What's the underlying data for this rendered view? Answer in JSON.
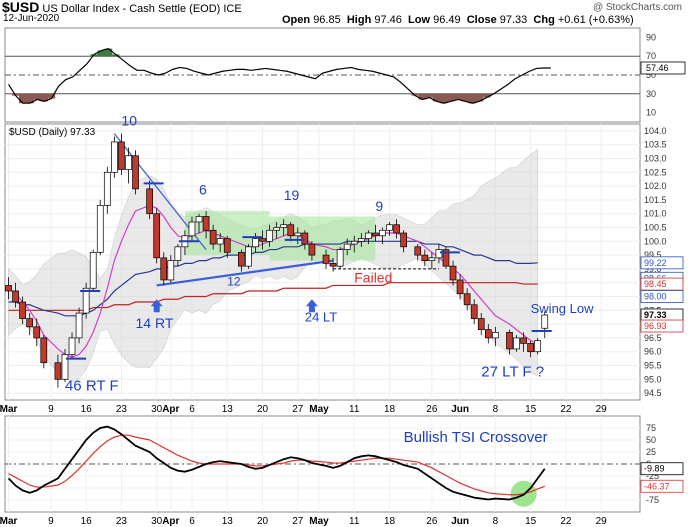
{
  "header": {
    "symbol": "$USD",
    "name": "US Dollar Index - Cash Settle (EOD)",
    "exchange": "ICE",
    "date": "12-Jun-2020",
    "watermark": "@ StockCharts.com",
    "open_label": "Open",
    "open": "96.85",
    "high_label": "High",
    "high": "97.46",
    "low_label": "Low",
    "low": "96.49",
    "close_label": "Close",
    "close": "97.33",
    "chg_label": "Chg",
    "chg": "+0.61 (+0.63%)"
  },
  "colors": {
    "up_candle": "#ffffff",
    "down_candle": "#c0392b",
    "candle_outline": "#000000",
    "trendline": "#3a5fd9",
    "annotation": "#1f3fbf",
    "failed": "#e03030",
    "ma_fast": "#d040c8",
    "ma_slow": "#2a3a8c",
    "ma_long": "#c02020",
    "band_fill": "#d8d8d8",
    "box_fill": "#a8e6a0",
    "rsi_line": "#000000",
    "rsi_over": "#3c7a40",
    "rsi_under": "#8a5a52",
    "tsi_line": "#000000",
    "tsi_signal": "#e03030",
    "highlight_circle": "#7ddc6a",
    "tag_blue": "#2a52be",
    "tag_red": "#d03030"
  },
  "chart_data": [
    {
      "type": "line",
      "panel": "rsi",
      "yticks": [
        "90",
        "70",
        "50",
        "30",
        "10"
      ],
      "ylim": [
        0,
        100
      ],
      "levels": [
        70,
        50,
        30
      ],
      "current_label": "57.46",
      "x": [
        0,
        1,
        2,
        3,
        4,
        5,
        6,
        7,
        8,
        9,
        10,
        11,
        12,
        13,
        14,
        15,
        16,
        17,
        18,
        19,
        20,
        21,
        22,
        23,
        24,
        25,
        26,
        27,
        28,
        29,
        30,
        31,
        32,
        33,
        34,
        35,
        36,
        37,
        38,
        39,
        40,
        41,
        42,
        43,
        44,
        45,
        46,
        47,
        48,
        49,
        50,
        51,
        52,
        53,
        54,
        55,
        56,
        57,
        58,
        59,
        60,
        61,
        62,
        63,
        64,
        65,
        66,
        67,
        68,
        69,
        70,
        71,
        72,
        73,
        74,
        75,
        76
      ],
      "series": [
        {
          "values": [
            40,
            28,
            20,
            20,
            24,
            22,
            25,
            38,
            45,
            48,
            55,
            62,
            72,
            76,
            78,
            72,
            66,
            60,
            55,
            55,
            52,
            50,
            52,
            56,
            58,
            57,
            54,
            52,
            50,
            52,
            54,
            55,
            56,
            56,
            55,
            56,
            57,
            56,
            55,
            54,
            52,
            50,
            48,
            46,
            52,
            54,
            56,
            57,
            58,
            56,
            55,
            54,
            52,
            50,
            48,
            42,
            35,
            28,
            24,
            26,
            22,
            20,
            22,
            24,
            22,
            20,
            22,
            26,
            30,
            35,
            40,
            46,
            50,
            54,
            57,
            57.46,
            57.46
          ]
        }
      ]
    },
    {
      "type": "candlestick",
      "panel": "price",
      "title": "$USD (Daily) 97.33",
      "ylim": [
        94.25,
        104.25
      ],
      "yticks": [
        "104.0",
        "103.5",
        "103.0",
        "102.5",
        "102.0",
        "101.5",
        "101.0",
        "100.5",
        "100.0",
        "99.5",
        "99.0",
        "98.5",
        "98.0",
        "97.5",
        "97.0",
        "96.5",
        "96.0",
        "95.5",
        "95.0",
        "94.5"
      ],
      "xticks": [
        "Mar",
        "9",
        "16",
        "23",
        "30",
        "Apr",
        "6",
        "13",
        "20",
        "27",
        "May",
        "11",
        "18",
        "26",
        "Jun",
        "8",
        "15",
        "22",
        "29"
      ],
      "price_tags": [
        {
          "label": "99.22",
          "value": 99.22,
          "color": "blue"
        },
        {
          "label": "98.66",
          "value": 98.66,
          "color": "blue"
        },
        {
          "label": "98.45",
          "value": 98.45,
          "color": "red"
        },
        {
          "label": "98.00",
          "value": 98.0,
          "color": "blue"
        },
        {
          "label": "97.33",
          "value": 97.33,
          "color": "black"
        },
        {
          "label": "96.93",
          "value": 96.93,
          "color": "red"
        }
      ],
      "candles": [
        {
          "o": 98.4,
          "h": 98.7,
          "l": 97.9,
          "c": 98.2
        },
        {
          "o": 98.2,
          "h": 98.5,
          "l": 97.6,
          "c": 97.8
        },
        {
          "o": 97.8,
          "h": 98.0,
          "l": 97.0,
          "c": 97.2
        },
        {
          "o": 97.2,
          "h": 97.4,
          "l": 96.6,
          "c": 96.9
        },
        {
          "o": 96.9,
          "h": 97.2,
          "l": 96.2,
          "c": 96.5
        },
        {
          "o": 96.5,
          "h": 96.6,
          "l": 95.4,
          "c": 95.6
        },
        {
          "o": 95.6,
          "h": 95.9,
          "l": 94.7,
          "c": 95.0
        },
        {
          "o": 95.0,
          "h": 96.1,
          "l": 94.9,
          "c": 95.9
        },
        {
          "o": 95.9,
          "h": 96.7,
          "l": 95.8,
          "c": 96.5
        },
        {
          "o": 96.5,
          "h": 97.6,
          "l": 96.3,
          "c": 97.4
        },
        {
          "o": 97.4,
          "h": 98.5,
          "l": 97.2,
          "c": 98.3
        },
        {
          "o": 98.3,
          "h": 99.7,
          "l": 98.2,
          "c": 99.6
        },
        {
          "o": 99.6,
          "h": 101.5,
          "l": 99.5,
          "c": 101.3
        },
        {
          "o": 101.3,
          "h": 102.7,
          "l": 101.0,
          "c": 102.5
        },
        {
          "o": 102.5,
          "h": 103.8,
          "l": 102.3,
          "c": 103.6
        },
        {
          "o": 103.6,
          "h": 103.9,
          "l": 102.4,
          "c": 102.6
        },
        {
          "o": 102.6,
          "h": 103.4,
          "l": 102.1,
          "c": 103.1
        },
        {
          "o": 103.1,
          "h": 103.3,
          "l": 101.7,
          "c": 101.9
        },
        {
          "o": 101.9,
          "h": 102.2,
          "l": 100.8,
          "c": 101.0
        },
        {
          "o": 101.0,
          "h": 101.2,
          "l": 99.2,
          "c": 99.4
        },
        {
          "o": 99.4,
          "h": 99.6,
          "l": 98.4,
          "c": 98.6
        },
        {
          "o": 98.6,
          "h": 99.5,
          "l": 98.5,
          "c": 99.3
        },
        {
          "o": 99.3,
          "h": 99.9,
          "l": 99.1,
          "c": 99.8
        },
        {
          "o": 99.8,
          "h": 100.4,
          "l": 99.5,
          "c": 100.2
        },
        {
          "o": 100.2,
          "h": 100.9,
          "l": 100.0,
          "c": 100.7
        },
        {
          "o": 100.7,
          "h": 101.0,
          "l": 100.3,
          "c": 100.9
        },
        {
          "o": 100.9,
          "h": 101.1,
          "l": 100.1,
          "c": 100.4
        },
        {
          "o": 100.4,
          "h": 100.6,
          "l": 99.7,
          "c": 99.9
        },
        {
          "o": 99.9,
          "h": 100.3,
          "l": 99.6,
          "c": 100.1
        },
        {
          "o": 100.1,
          "h": 100.2,
          "l": 99.4,
          "c": 99.6
        },
        {
          "o": 99.6,
          "h": 99.7,
          "l": 98.9,
          "c": 99.1
        },
        {
          "o": 99.1,
          "h": 99.9,
          "l": 99.0,
          "c": 99.8
        },
        {
          "o": 99.8,
          "h": 100.3,
          "l": 99.6,
          "c": 100.1
        },
        {
          "o": 100.1,
          "h": 100.4,
          "l": 99.7,
          "c": 100.0
        },
        {
          "o": 100.0,
          "h": 100.6,
          "l": 99.8,
          "c": 100.4
        },
        {
          "o": 100.4,
          "h": 100.7,
          "l": 100.1,
          "c": 100.5
        },
        {
          "o": 100.5,
          "h": 100.8,
          "l": 100.2,
          "c": 100.6
        },
        {
          "o": 100.6,
          "h": 100.7,
          "l": 100.0,
          "c": 100.2
        },
        {
          "o": 100.2,
          "h": 100.5,
          "l": 99.9,
          "c": 100.3
        },
        {
          "o": 100.3,
          "h": 100.4,
          "l": 99.7,
          "c": 99.9
        },
        {
          "o": 99.9,
          "h": 100.0,
          "l": 99.3,
          "c": 99.5
        },
        {
          "o": 99.5,
          "h": 99.7,
          "l": 99.0,
          "c": 99.2
        },
        {
          "o": 99.2,
          "h": 99.4,
          "l": 98.9,
          "c": 99.1
        },
        {
          "o": 99.1,
          "h": 99.8,
          "l": 99.0,
          "c": 99.7
        },
        {
          "o": 99.7,
          "h": 100.1,
          "l": 99.5,
          "c": 99.9
        },
        {
          "o": 99.9,
          "h": 100.2,
          "l": 99.6,
          "c": 100.0
        },
        {
          "o": 100.0,
          "h": 100.3,
          "l": 99.8,
          "c": 100.1
        },
        {
          "o": 100.1,
          "h": 100.4,
          "l": 99.9,
          "c": 100.3
        },
        {
          "o": 100.3,
          "h": 100.6,
          "l": 100.0,
          "c": 100.2
        },
        {
          "o": 100.2,
          "h": 100.5,
          "l": 99.9,
          "c": 100.4
        },
        {
          "o": 100.4,
          "h": 100.7,
          "l": 100.2,
          "c": 100.6
        },
        {
          "o": 100.6,
          "h": 100.8,
          "l": 100.1,
          "c": 100.3
        },
        {
          "o": 100.3,
          "h": 100.4,
          "l": 99.6,
          "c": 99.8
        },
        {
          "o": 99.8,
          "h": 99.9,
          "l": 99.3,
          "c": 99.5
        },
        {
          "o": 99.5,
          "h": 99.7,
          "l": 99.1,
          "c": 99.3
        },
        {
          "o": 99.3,
          "h": 99.6,
          "l": 99.0,
          "c": 99.4
        },
        {
          "o": 99.4,
          "h": 99.9,
          "l": 99.2,
          "c": 99.7
        },
        {
          "o": 99.7,
          "h": 99.8,
          "l": 99.0,
          "c": 99.1
        },
        {
          "o": 99.1,
          "h": 99.3,
          "l": 98.4,
          "c": 98.6
        },
        {
          "o": 98.6,
          "h": 98.8,
          "l": 97.9,
          "c": 98.1
        },
        {
          "o": 98.1,
          "h": 98.3,
          "l": 97.5,
          "c": 97.7
        },
        {
          "o": 97.7,
          "h": 97.9,
          "l": 97.0,
          "c": 97.2
        },
        {
          "o": 97.2,
          "h": 97.4,
          "l": 96.6,
          "c": 96.8
        },
        {
          "o": 96.8,
          "h": 97.0,
          "l": 96.3,
          "c": 96.5
        },
        {
          "o": 96.5,
          "h": 96.9,
          "l": 96.2,
          "c": 96.7
        },
        {
          "o": 96.7,
          "h": 96.8,
          "l": 95.9,
          "c": 96.1
        },
        {
          "o": 96.1,
          "h": 96.6,
          "l": 96.0,
          "c": 96.5
        },
        {
          "o": 96.5,
          "h": 96.7,
          "l": 96.0,
          "c": 96.3
        },
        {
          "o": 96.3,
          "h": 96.4,
          "l": 95.8,
          "c": 96.0
        },
        {
          "o": 96.0,
          "h": 96.5,
          "l": 95.9,
          "c": 96.4
        },
        {
          "o": 96.85,
          "h": 97.46,
          "l": 96.49,
          "c": 97.33
        }
      ],
      "ma_fast": [
        98.3,
        98.1,
        97.8,
        97.5,
        97.1,
        96.6,
        96.1,
        95.9,
        95.8,
        95.9,
        96.2,
        96.7,
        97.4,
        98.3,
        99.3,
        100.0,
        100.6,
        101.1,
        101.3,
        101.2,
        100.9,
        100.5,
        100.2,
        100.1,
        100.2,
        100.3,
        100.4,
        100.3,
        100.2,
        100.1,
        99.9,
        99.8,
        99.8,
        99.9,
        100.0,
        100.1,
        100.2,
        100.3,
        100.2,
        100.1,
        99.9,
        99.8,
        99.7,
        99.7,
        99.8,
        99.9,
        100.0,
        100.1,
        100.2,
        100.3,
        100.3,
        100.3,
        100.2,
        100.0,
        99.8,
        99.6,
        99.4,
        99.2,
        99.0,
        98.8,
        98.5,
        98.2,
        97.9,
        97.6,
        97.3,
        97.0,
        96.8,
        96.6,
        96.4,
        96.3
      ],
      "ma_slow": [
        97.8,
        97.8,
        97.7,
        97.7,
        97.6,
        97.5,
        97.4,
        97.3,
        97.3,
        97.3,
        97.4,
        97.5,
        97.7,
        97.9,
        98.2,
        98.4,
        98.6,
        98.8,
        98.9,
        99.0,
        99.0,
        99.1,
        99.1,
        99.2,
        99.2,
        99.3,
        99.3,
        99.4,
        99.4,
        99.5,
        99.5,
        99.5,
        99.6,
        99.6,
        99.7,
        99.7,
        99.8,
        99.8,
        99.8,
        99.9,
        99.9,
        99.9,
        99.9,
        99.9,
        100.0,
        100.0,
        100.0,
        100.0,
        100.0,
        100.0,
        100.0,
        100.0,
        100.0,
        100.0,
        99.9,
        99.9,
        99.9,
        99.8,
        99.8,
        99.7,
        99.6,
        99.5,
        99.5,
        99.4,
        99.3,
        99.3,
        99.2,
        99.2,
        99.2,
        99.22
      ],
      "ma_long": [
        97.5,
        97.5,
        97.5,
        97.5,
        97.5,
        97.5,
        97.5,
        97.5,
        97.5,
        97.5,
        97.5,
        97.6,
        97.6,
        97.6,
        97.7,
        97.7,
        97.7,
        97.8,
        97.8,
        97.8,
        97.9,
        97.9,
        97.9,
        98.0,
        98.0,
        98.0,
        98.0,
        98.1,
        98.1,
        98.1,
        98.1,
        98.2,
        98.2,
        98.2,
        98.2,
        98.2,
        98.3,
        98.3,
        98.3,
        98.3,
        98.3,
        98.3,
        98.4,
        98.4,
        98.4,
        98.4,
        98.4,
        98.4,
        98.4,
        98.4,
        98.5,
        98.5,
        98.5,
        98.5,
        98.5,
        98.5,
        98.5,
        98.5,
        98.5,
        98.5,
        98.5,
        98.5,
        98.5,
        98.5,
        98.5,
        98.5,
        98.5,
        98.45,
        98.45,
        98.45
      ],
      "annotations": [
        "10",
        "6",
        "19",
        "9",
        "12",
        "14 RT",
        "24 LT",
        "Failed",
        "46 RT F",
        "27 LT F ?",
        "Swing Low"
      ]
    },
    {
      "type": "line",
      "panel": "tsi",
      "title": "Bullish TSI Crossover",
      "ylim": [
        -100,
        100
      ],
      "yticks": [
        "75",
        "50",
        "25",
        "0",
        "-25",
        "-50",
        "-75"
      ],
      "current_labels": [
        "-9.89",
        "-46.37"
      ],
      "series": [
        {
          "name": "",
          "values": [
            -30,
            -45,
            -55,
            -60,
            -55,
            -45,
            -30,
            -10,
            10,
            30,
            50,
            65,
            75,
            78,
            72,
            62,
            50,
            38,
            25,
            12,
            2,
            -8,
            -14,
            -16,
            -12,
            -6,
            0,
            4,
            6,
            4,
            0,
            -6,
            -10,
            -8,
            -2,
            4,
            10,
            14,
            12,
            8,
            2,
            -4,
            -8,
            -4,
            4,
            12,
            16,
            18,
            16,
            12,
            8,
            4,
            -2,
            -10,
            -20,
            -30,
            -40,
            -50,
            -58,
            -62,
            -66,
            -70,
            -72,
            -74,
            -72,
            -74,
            -70,
            -64,
            -50,
            -30,
            -9.89
          ]
        },
        {
          "name": "",
          "values": [
            -20,
            -28,
            -36,
            -44,
            -48,
            -48,
            -44,
            -36,
            -24,
            -10,
            6,
            22,
            36,
            48,
            56,
            60,
            60,
            56,
            50,
            42,
            34,
            26,
            18,
            12,
            6,
            2,
            0,
            0,
            0,
            0,
            0,
            -2,
            -4,
            -4,
            -2,
            0,
            2,
            6,
            8,
            8,
            6,
            4,
            2,
            2,
            4,
            6,
            8,
            10,
            12,
            12,
            12,
            10,
            8,
            4,
            -2,
            -8,
            -16,
            -24,
            -32,
            -40,
            -46,
            -52,
            -56,
            -60,
            -62,
            -64,
            -64,
            -62,
            -58,
            -52,
            -46.37
          ]
        }
      ]
    }
  ]
}
